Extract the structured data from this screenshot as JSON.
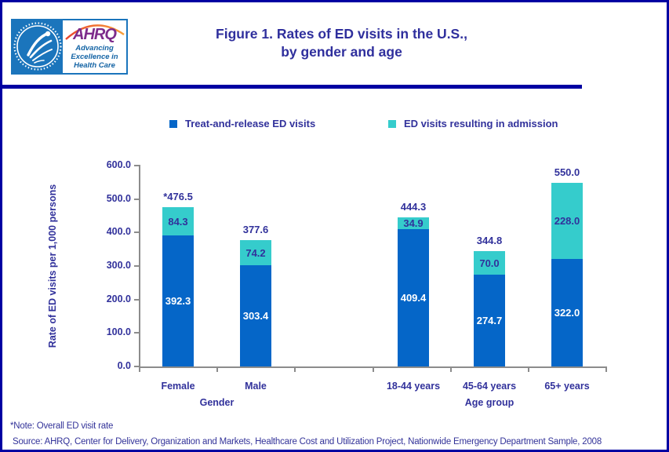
{
  "header": {
    "title_line1": "Figure 1. Rates of ED visits in the U.S.,",
    "title_line2": "by gender and age",
    "logo": {
      "acronym": "AHRQ",
      "tagline": [
        "Advancing",
        "Excellence in",
        "Health Care"
      ]
    }
  },
  "chart_data": {
    "type": "bar",
    "stacked": true,
    "categories": [
      "Female",
      "Male",
      "18-44 years",
      "45-64 years",
      "65+ years"
    ],
    "series": [
      {
        "name": "Treat-and-release ED visits",
        "color": "#0566C8",
        "label_color": "#FFFFFF",
        "values": [
          392.3,
          303.4,
          409.4,
          274.7,
          322.0
        ],
        "labels": [
          "392.3",
          "303.4",
          "409.4",
          "274.7",
          "322.0"
        ]
      },
      {
        "name": "ED visits resulting in admission",
        "color": "#35CCCC",
        "label_color": "#31319B",
        "values": [
          84.3,
          74.2,
          34.9,
          70.0,
          228.0
        ],
        "labels": [
          "84.3",
          "74.2",
          "34.9",
          "70.0",
          "228.0"
        ]
      }
    ],
    "totals": [
      476.5,
      377.6,
      444.3,
      344.8,
      550.0
    ],
    "total_labels": [
      "*476.5",
      "377.6",
      "444.3",
      "344.8",
      "550.0"
    ],
    "group_labels": [
      "Gender",
      "Age group"
    ],
    "ylabel": "Rate of ED visits per 1,000 persons",
    "yticks": [
      "600.0",
      "500.0",
      "400.0",
      "300.0",
      "200.0",
      "100.0",
      "0.0"
    ],
    "ylim": [
      0,
      600
    ],
    "grid": false,
    "legend_position": "top"
  },
  "footer": {
    "note": "*Note: Overall ED visit rate",
    "source": "Source: AHRQ, Center for Delivery, Organization and Markets, Healthcare Cost and Utilization Project, Nationwide Emergency Department Sample, 2008"
  }
}
